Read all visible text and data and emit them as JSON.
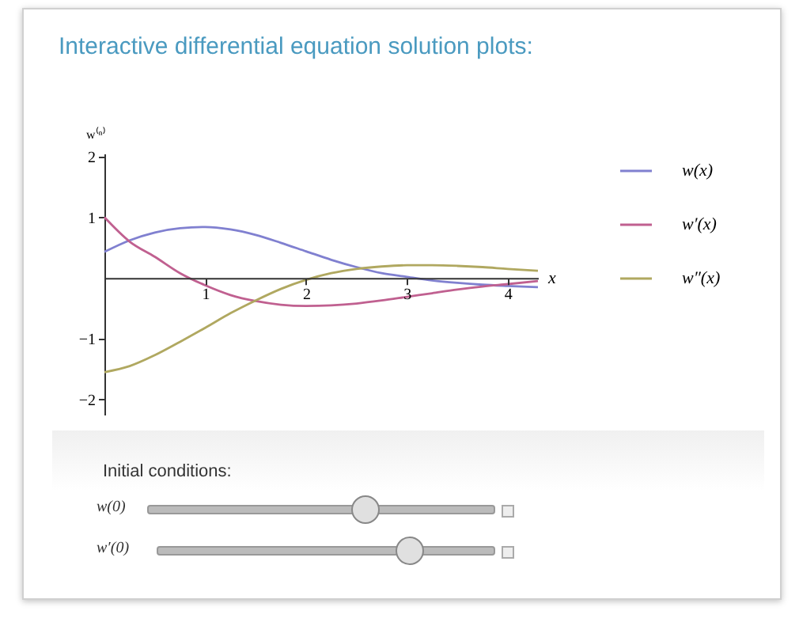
{
  "chart_data": {
    "type": "line",
    "title": "Interactive differential equation solution plots:",
    "xlabel": "x",
    "ylabel": "w⁽ⁿ⁾",
    "x": [
      0,
      0.25,
      0.5,
      0.75,
      1,
      1.25,
      1.5,
      1.75,
      2,
      2.25,
      2.5,
      2.75,
      3,
      3.25,
      3.5,
      3.75,
      4,
      4.3
    ],
    "series": [
      {
        "name": "w(x)",
        "color": "#8080d0",
        "values": [
          0.43,
          0.62,
          0.75,
          0.82,
          0.84,
          0.8,
          0.71,
          0.58,
          0.44,
          0.3,
          0.18,
          0.08,
          0.02,
          -0.04,
          -0.08,
          -0.11,
          -0.13,
          -0.15
        ]
      },
      {
        "name": "w′(x)",
        "color": "#c06090",
        "values": [
          1.0,
          0.6,
          0.35,
          0.08,
          -0.12,
          -0.28,
          -0.38,
          -0.44,
          -0.46,
          -0.45,
          -0.42,
          -0.37,
          -0.31,
          -0.25,
          -0.19,
          -0.14,
          -0.1,
          -0.05
        ]
      },
      {
        "name": "w″(x)",
        "color": "#b0a860",
        "values": [
          -1.55,
          -1.45,
          -1.27,
          -1.05,
          -0.82,
          -0.58,
          -0.37,
          -0.18,
          -0.03,
          0.08,
          0.15,
          0.19,
          0.21,
          0.21,
          0.2,
          0.18,
          0.15,
          0.12
        ]
      }
    ],
    "xlim": [
      0,
      4.3
    ],
    "ylim": [
      -2.25,
      2.05
    ],
    "xticks": [
      1,
      2,
      3,
      4
    ],
    "yticks": [
      -2,
      -1,
      1,
      2
    ],
    "legend": "right",
    "grid": false,
    "marker": "none",
    "annotations": [
      "Initial conditions:",
      "w(0)",
      "w′(0)"
    ]
  }
}
